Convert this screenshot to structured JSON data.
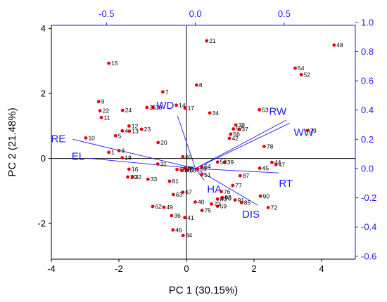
{
  "chart_data": {
    "type": "scatter",
    "subtype": "biplot",
    "xlabel": "PC 1 (30.15%)",
    "ylabel": "PC 2 (21.48%)",
    "xlim": [
      -4,
      5
    ],
    "ylim": [
      -3.1,
      4.1
    ],
    "xticks": [
      -4,
      -2,
      0,
      2,
      4
    ],
    "yticks": [
      -2,
      0,
      2,
      4
    ],
    "secondary_xlim": [
      -0.81,
      0.9
    ],
    "secondary_ylim": [
      -0.62,
      0.98
    ],
    "secondary_xticks": [
      -0.5,
      0.0,
      0.5
    ],
    "secondary_yticks": [
      -0.6,
      -0.4,
      -0.2,
      0.0,
      0.2,
      0.4,
      0.6,
      0.8,
      1.0
    ],
    "grid": false,
    "zero_lines": true,
    "colors": {
      "points": "#e8000b",
      "loadings": "#1a1aff",
      "axes": "#000000"
    },
    "points": [
      {
        "label": "1",
        "x": -2.3,
        "y": 0.19
      },
      {
        "label": "3",
        "x": -2.0,
        "y": 0.24
      },
      {
        "label": "4",
        "x": -1.9,
        "y": 0.85
      },
      {
        "label": "5",
        "x": -2.1,
        "y": 0.7
      },
      {
        "label": "7",
        "x": -0.7,
        "y": 2.05
      },
      {
        "label": "8",
        "x": 0.3,
        "y": 2.26
      },
      {
        "label": "9",
        "x": -2.6,
        "y": 1.75
      },
      {
        "label": "10",
        "x": -2.98,
        "y": 0.63
      },
      {
        "label": "11",
        "x": -2.52,
        "y": 1.26
      },
      {
        "label": "12",
        "x": -1.7,
        "y": 1.0
      },
      {
        "label": "13",
        "x": -1.69,
        "y": 0.84
      },
      {
        "label": "14",
        "x": -0.3,
        "y": 1.64
      },
      {
        "label": "15",
        "x": -2.3,
        "y": 2.93
      },
      {
        "label": "16",
        "x": -1.7,
        "y": -0.33
      },
      {
        "label": "17",
        "x": -0.04,
        "y": 1.55
      },
      {
        "label": "18",
        "x": -1.9,
        "y": 0.02
      },
      {
        "label": "19",
        "x": -0.99,
        "y": 1.57
      },
      {
        "label": "20",
        "x": -0.84,
        "y": 0.49
      },
      {
        "label": "21",
        "x": 0.6,
        "y": 3.62
      },
      {
        "label": "22",
        "x": -2.56,
        "y": 1.47
      },
      {
        "label": "23",
        "x": -1.33,
        "y": 0.9
      },
      {
        "label": "24",
        "x": -1.89,
        "y": 1.48
      },
      {
        "label": "25",
        "x": -1.17,
        "y": 1.57
      },
      {
        "label": "30",
        "x": -1.74,
        "y": -0.57
      },
      {
        "label": "31",
        "x": -0.85,
        "y": -0.17
      },
      {
        "label": "32",
        "x": -1.6,
        "y": -0.57
      },
      {
        "label": "33",
        "x": -1.14,
        "y": -0.64
      },
      {
        "label": "34",
        "x": 0.69,
        "y": 1.4
      },
      {
        "label": "36",
        "x": -0.44,
        "y": -1.76
      },
      {
        "label": "37",
        "x": 1.56,
        "y": 0.9
      },
      {
        "label": "38",
        "x": 1.46,
        "y": 1.03
      },
      {
        "label": "39",
        "x": 1.13,
        "y": -0.12
      },
      {
        "label": "40",
        "x": 0.26,
        "y": -1.34
      },
      {
        "label": "41",
        "x": -0.05,
        "y": -1.82
      },
      {
        "label": "42",
        "x": 1.27,
        "y": 0.62
      },
      {
        "label": "44",
        "x": 2.53,
        "y": -0.12
      },
      {
        "label": "45",
        "x": 2.17,
        "y": -0.3
      },
      {
        "label": "46",
        "x": -0.4,
        "y": -2.2
      },
      {
        "label": "47",
        "x": 2.65,
        "y": -0.19
      },
      {
        "label": "48",
        "x": 4.37,
        "y": 3.49
      },
      {
        "label": "49",
        "x": -0.67,
        "y": -1.5
      },
      {
        "label": "50",
        "x": 0.92,
        "y": -0.11
      },
      {
        "label": "51",
        "x": 0.45,
        "y": -0.5
      },
      {
        "label": "52",
        "x": 3.4,
        "y": 2.58
      },
      {
        "label": "53",
        "x": 2.16,
        "y": 1.5
      },
      {
        "label": "54",
        "x": 3.22,
        "y": 2.78
      },
      {
        "label": "56",
        "x": 1.31,
        "y": 0.75
      },
      {
        "label": "57",
        "x": 1.39,
        "y": 0.91
      },
      {
        "label": "59",
        "x": 0.92,
        "y": -1.47
      },
      {
        "label": "60",
        "x": -0.11,
        "y": 0.05
      },
      {
        "label": "62",
        "x": -1.0,
        "y": -1.48
      },
      {
        "label": "63",
        "x": -0.39,
        "y": -1.11
      },
      {
        "label": "64",
        "x": 0.45,
        "y": -0.25
      },
      {
        "label": "65",
        "x": -0.28,
        "y": -0.34
      },
      {
        "label": "66",
        "x": -0.04,
        "y": -0.29
      },
      {
        "label": "67",
        "x": -0.11,
        "y": -1.04
      },
      {
        "label": "68",
        "x": 0.02,
        "y": -0.36
      },
      {
        "label": "69",
        "x": 0.33,
        "y": -0.32
      },
      {
        "label": "70",
        "x": 1.06,
        "y": -1.23
      },
      {
        "label": "72",
        "x": 2.42,
        "y": -1.51
      },
      {
        "label": "73",
        "x": 0.74,
        "y": -1.4
      },
      {
        "label": "75",
        "x": 0.46,
        "y": -1.6
      },
      {
        "label": "76",
        "x": 1.03,
        "y": -1.02
      },
      {
        "label": "77",
        "x": 1.37,
        "y": -0.83
      },
      {
        "label": "78",
        "x": 2.3,
        "y": 0.37
      },
      {
        "label": "79",
        "x": 3.58,
        "y": 0.86
      },
      {
        "label": "81",
        "x": -0.5,
        "y": -0.7
      },
      {
        "label": "82",
        "x": 1.06,
        "y": -1.2
      },
      {
        "label": "83",
        "x": 0.92,
        "y": -1.25
      },
      {
        "label": "84",
        "x": -0.1,
        "y": -2.37
      },
      {
        "label": "85",
        "x": 1.63,
        "y": -1.36
      },
      {
        "label": "86",
        "x": -0.13,
        "y": -0.37
      },
      {
        "label": "87",
        "x": 1.59,
        "y": -0.53
      },
      {
        "label": "90",
        "x": 2.19,
        "y": -1.16
      },
      {
        "label": "91",
        "x": 1.44,
        "y": -1.28
      }
    ],
    "loadings": [
      {
        "label": "WD",
        "x": -0.1,
        "y": 0.36
      },
      {
        "label": "RW",
        "x": 0.51,
        "y": 0.33
      },
      {
        "label": "WW",
        "x": 0.53,
        "y": 0.31
      },
      {
        "label": "RE",
        "x": -0.69,
        "y": 0.2
      },
      {
        "label": "EL",
        "x": -0.6,
        "y": 0.07
      },
      {
        "label": "RT",
        "x": 0.47,
        "y": -0.03
      },
      {
        "label": "HA",
        "x": 0.05,
        "y": -0.08
      },
      {
        "label": "DIS",
        "x": 0.35,
        "y": -0.25
      }
    ]
  }
}
